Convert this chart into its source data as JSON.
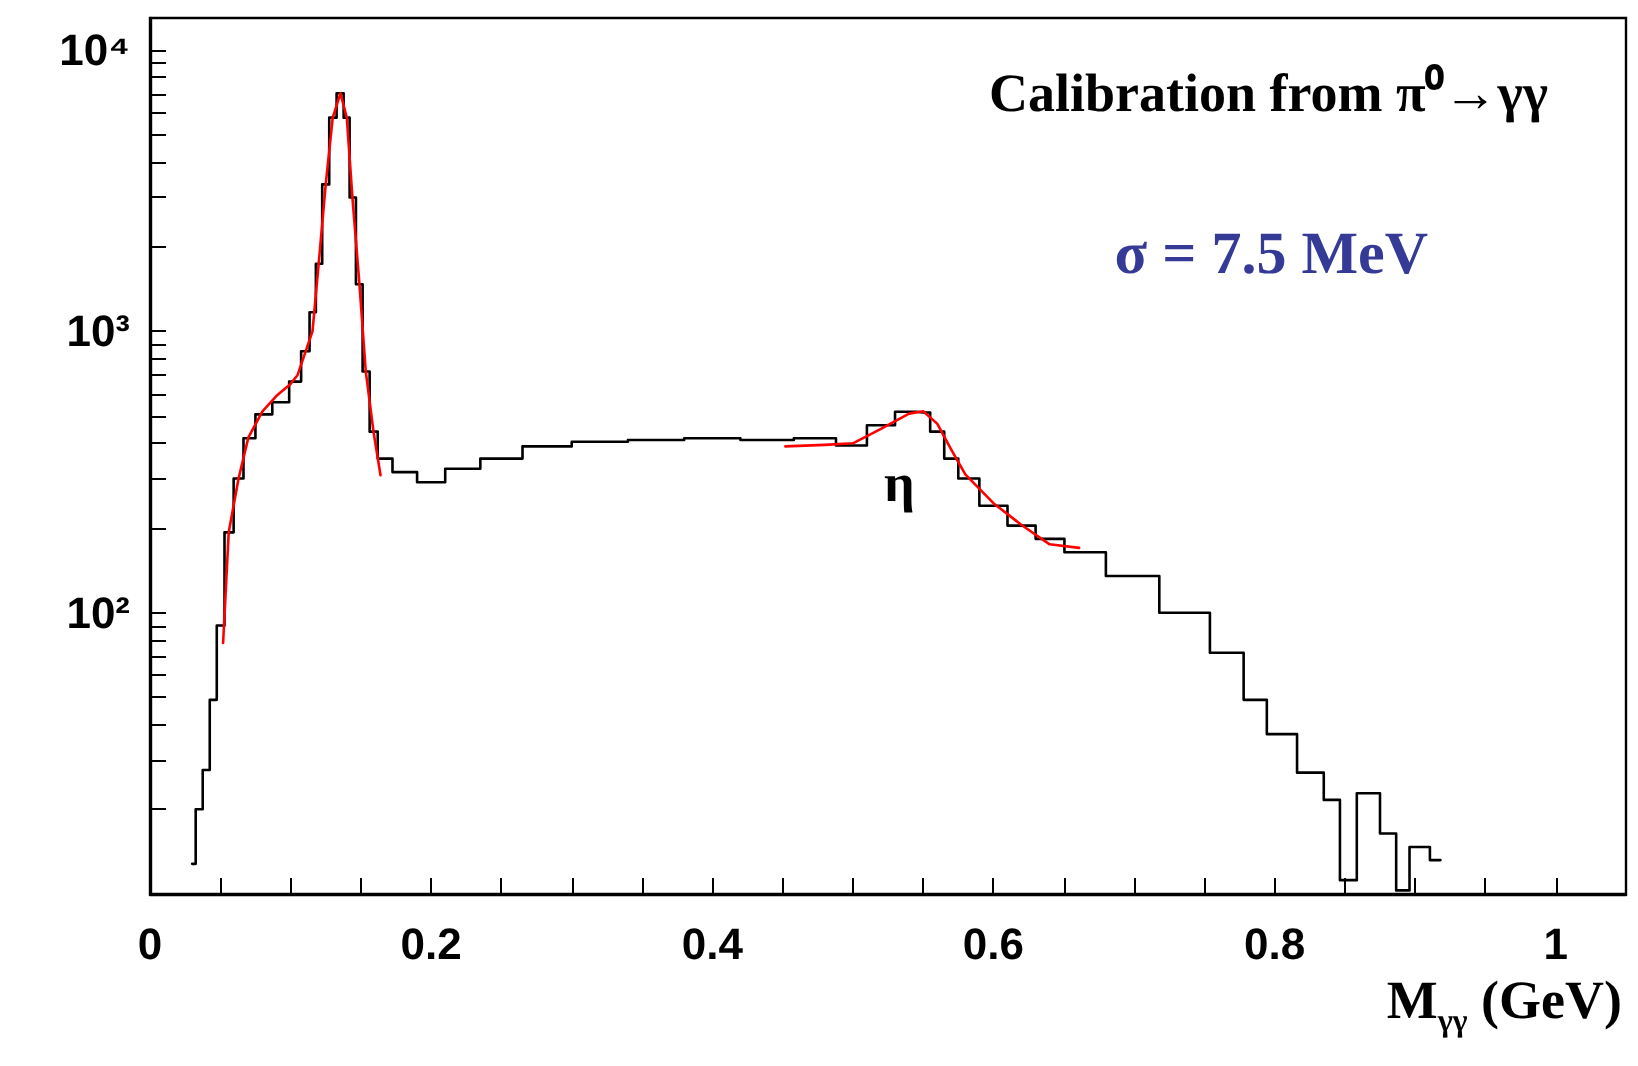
{
  "chart_data": {
    "type": "step",
    "title": "Calibration from π⁰→γγ",
    "xlabel": "M$_{γγ}$ (GeV)",
    "annotations": [
      "σ = 7.5 MeV",
      "η"
    ],
    "log": "y",
    "grid": false,
    "marker": "none",
    "xlim": [
      0,
      1.05
    ],
    "xticks": [
      0,
      {
        "value": 0.05,
        "label": null
      },
      {
        "value": 0.1,
        "label": null
      },
      {
        "value": 0.15,
        "label": null
      },
      0.2,
      {
        "value": 0.25,
        "label": null
      },
      {
        "value": 0.3,
        "label": null
      },
      {
        "value": 0.35,
        "label": null
      },
      0.4,
      {
        "value": 0.45,
        "label": null
      },
      {
        "value": 0.5,
        "label": null
      },
      {
        "value": 0.55,
        "label": null
      },
      0.6,
      {
        "value": 0.65,
        "label": null
      },
      {
        "value": 0.7,
        "label": null
      },
      {
        "value": 0.75,
        "label": null
      },
      0.8,
      {
        "value": 0.85,
        "label": null
      },
      {
        "value": 0.9,
        "label": null
      },
      {
        "value": 0.95,
        "label": null
      },
      1
    ],
    "ylim": [
      10,
      13000
    ],
    "yticks": [
      {
        "value": 20,
        "label": null
      },
      {
        "value": 30,
        "label": null
      },
      {
        "value": 40,
        "label": null
      },
      {
        "value": 50,
        "label": null
      },
      {
        "value": 60,
        "label": null
      },
      {
        "value": 70,
        "label": null
      },
      {
        "value": 80,
        "label": null
      },
      {
        "value": 90,
        "label": null
      },
      {
        "value": 100,
        "label": "10²"
      },
      {
        "value": 200,
        "label": null
      },
      {
        "value": 300,
        "label": null
      },
      {
        "value": 400,
        "label": null
      },
      {
        "value": 500,
        "label": null
      },
      {
        "value": 600,
        "label": null
      },
      {
        "value": 700,
        "label": null
      },
      {
        "value": 800,
        "label": null
      },
      {
        "value": 900,
        "label": null
      },
      {
        "value": 1000,
        "label": "10³"
      },
      {
        "value": 2000,
        "label": null
      },
      {
        "value": 3000,
        "label": null
      },
      {
        "value": 4000,
        "label": null
      },
      {
        "value": 5000,
        "label": null
      },
      {
        "value": 6000,
        "label": null
      },
      {
        "value": 7000,
        "label": null
      },
      {
        "value": 8000,
        "label": null
      },
      {
        "value": 9000,
        "label": null
      },
      {
        "value": 10000,
        "label": "10⁴"
      }
    ],
    "series": [
      {
        "color": "#000000",
        "x": [
          0.03,
          0.035,
          0.04,
          0.045,
          0.05,
          0.056,
          0.063,
          0.07,
          0.08,
          0.094,
          0.104,
          0.111,
          0.116,
          0.12,
          0.125,
          0.13,
          0.1355,
          0.14,
          0.144,
          0.149,
          0.1535,
          0.159,
          0.165,
          0.18,
          0.2,
          0.22,
          0.25,
          0.28,
          0.32,
          0.36,
          0.4,
          0.44,
          0.476,
          0.5,
          0.52,
          0.54,
          0.55,
          0.56,
          0.57,
          0.58,
          0.6,
          0.62,
          0.64,
          0.661,
          0.699,
          0.737,
          0.771,
          0.785,
          0.804,
          0.828,
          0.842,
          0.851,
          0.866,
          0.884,
          0.889,
          0.903,
          0.918
        ],
        "values": [
          12.8,
          20,
          27.6,
          49,
          90,
          193,
          300,
          417,
          507,
          560,
          663,
          850,
          1170,
          1740,
          3330,
          5750,
          7020,
          5750,
          2990,
          1470,
          720,
          440,
          353,
          316,
          291,
          325,
          353,
          390,
          405,
          411,
          417,
          411,
          417,
          393,
          464,
          518,
          515,
          440,
          353,
          300,
          240,
          204,
          183,
          164,
          135,
          100,
          72,
          49,
          37,
          27,
          21.6,
          11.2,
          22.8,
          16.4,
          10.3,
          14.7,
          13.2
        ]
      },
      {
        "type": "line",
        "color": "#ff0000",
        "x": [
          0.052,
          0.056,
          0.063,
          0.07,
          0.08,
          0.09,
          0.1,
          0.105,
          0.1156,
          0.12,
          0.125,
          0.13,
          0.1355,
          0.14,
          0.144,
          0.149,
          0.1535,
          0.159,
          0.164,
          null,
          0.452,
          0.48,
          0.5,
          0.52,
          0.54,
          0.55,
          0.56,
          0.57,
          0.58,
          0.6,
          0.62,
          0.64,
          0.661
        ],
        "values": [
          78,
          193,
          300,
          420,
          520,
          590,
          650,
          700,
          1000,
          1740,
          3330,
          5750,
          7020,
          5750,
          2990,
          1470,
          720,
          440,
          308,
          null,
          390,
          395,
          400,
          450,
          510,
          520,
          470,
          380,
          310,
          245,
          205,
          175,
          170
        ]
      }
    ]
  }
}
